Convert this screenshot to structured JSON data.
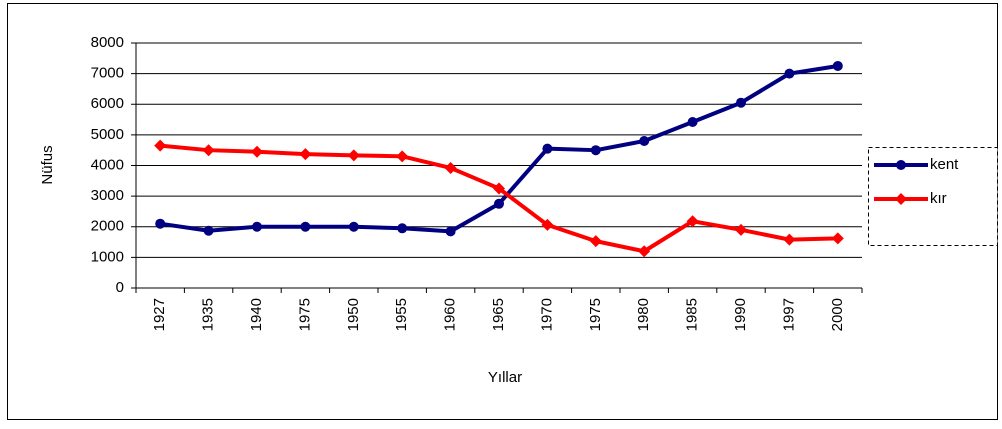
{
  "chart_data": {
    "type": "line",
    "x_label": "Yıllar",
    "y_label": "Nüfus",
    "categories": [
      "1927",
      "1935",
      "1940",
      "1975",
      "1950",
      "1955",
      "1960",
      "1965",
      "1970",
      "1975",
      "1980",
      "1985",
      "1990",
      "1997",
      "2000"
    ],
    "series": [
      {
        "name": "kent",
        "color": "#000080",
        "marker": "circle",
        "values": [
          2100,
          1870,
          2000,
          2000,
          2000,
          1950,
          1850,
          2750,
          4550,
          4500,
          4800,
          5420,
          6050,
          7000,
          7250
        ]
      },
      {
        "name": "kır",
        "color": "#ff0000",
        "marker": "diamond",
        "values": [
          4650,
          4500,
          4450,
          4370,
          4330,
          4300,
          3920,
          3250,
          2060,
          1530,
          1200,
          2180,
          1900,
          1580,
          1620
        ]
      }
    ],
    "ylim": [
      0,
      8000
    ],
    "yticks": [
      0,
      1000,
      2000,
      3000,
      4000,
      5000,
      6000,
      7000,
      8000
    ],
    "grid": true,
    "legend": "right"
  }
}
